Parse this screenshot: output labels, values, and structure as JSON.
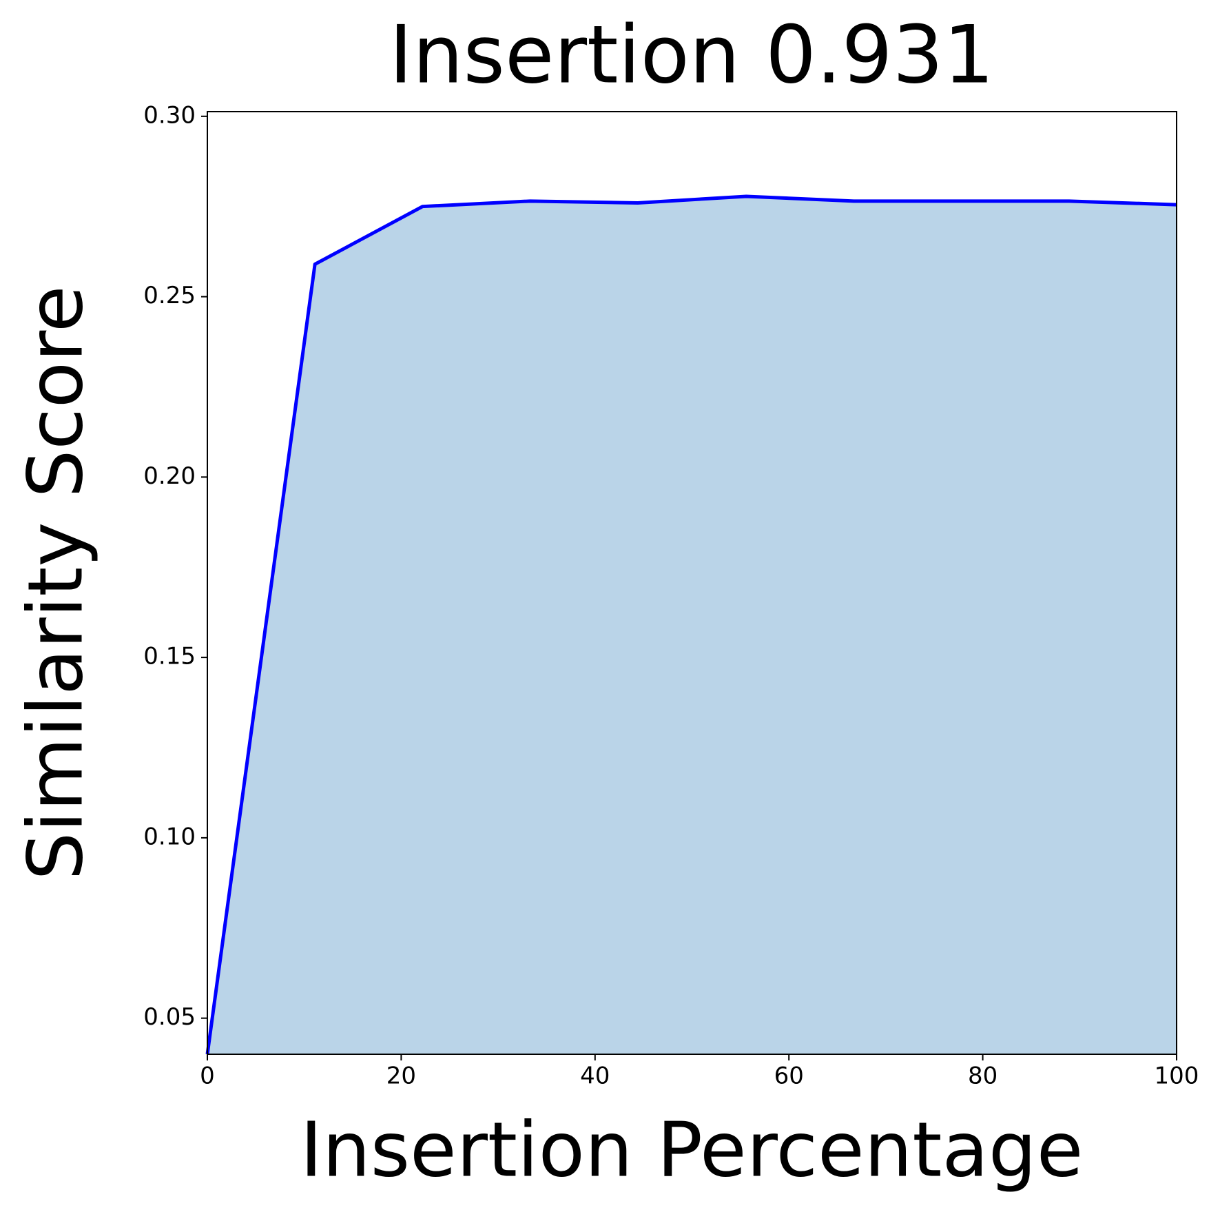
{
  "chart_data": {
    "type": "area",
    "title": "Insertion 0.931",
    "x_label": "Insertion Percentage",
    "y_label": "Similarity Score",
    "x": [
      0,
      11.1,
      22.2,
      33.3,
      44.4,
      55.6,
      66.7,
      77.8,
      88.9,
      100
    ],
    "series": [
      {
        "color": "#0000ff",
        "fill": "#bad4e8",
        "values": [
          0.04,
          0.259,
          0.275,
          0.2765,
          0.276,
          0.2778,
          0.2765,
          0.2765,
          0.2765,
          0.2755
        ]
      }
    ],
    "xlim": [
      0,
      100
    ],
    "xticks": [
      0,
      20,
      40,
      60,
      80,
      100
    ],
    "ylim": [
      0.04,
      0.3013
    ],
    "yticks": [
      0.05,
      {
        "value": 0.1,
        "label": "0.10"
      },
      0.15,
      {
        "value": 0.2,
        "label": "0.20"
      },
      0.25,
      {
        "value": 0.3,
        "label": "0.30"
      }
    ],
    "grid": false
  }
}
